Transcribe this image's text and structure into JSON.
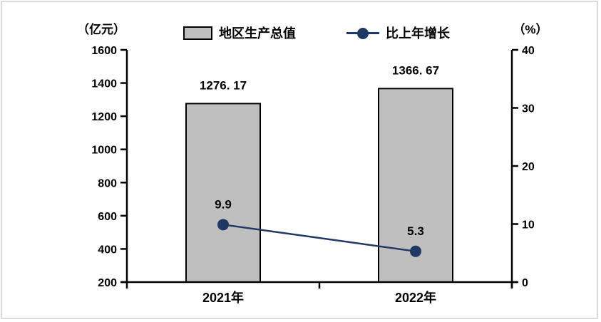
{
  "chart_data": {
    "type": "combo-bar-line",
    "categories": [
      "2021年",
      "2022年"
    ],
    "series": [
      {
        "name": "地区生产总值",
        "type": "bar",
        "axis": "left",
        "values": [
          1276.17,
          1366.67
        ],
        "value_labels": [
          "1276. 17",
          "1366. 67"
        ],
        "fill": "#bfbfbf",
        "stroke": "#000000"
      },
      {
        "name": "比上年增长",
        "type": "line",
        "axis": "right",
        "values": [
          9.9,
          5.3
        ],
        "value_labels": [
          "9.9",
          "5.3"
        ],
        "color": "#1f3864"
      }
    ],
    "left_axis": {
      "title": "（亿元）",
      "min": 200,
      "max": 1600,
      "step": 200,
      "tick_labels": [
        "1600",
        "1400",
        "1200",
        "1000",
        "800",
        "600",
        "400",
        "200"
      ]
    },
    "right_axis": {
      "title": "（%）",
      "min": 0,
      "max": 40,
      "step": 10,
      "tick_labels": [
        "40",
        "30",
        "20",
        "10",
        "0"
      ]
    },
    "legend_position": "top",
    "grid": false,
    "axis_color": "#000000",
    "text_color": "#000000",
    "frame_border_color": "#dadada"
  }
}
